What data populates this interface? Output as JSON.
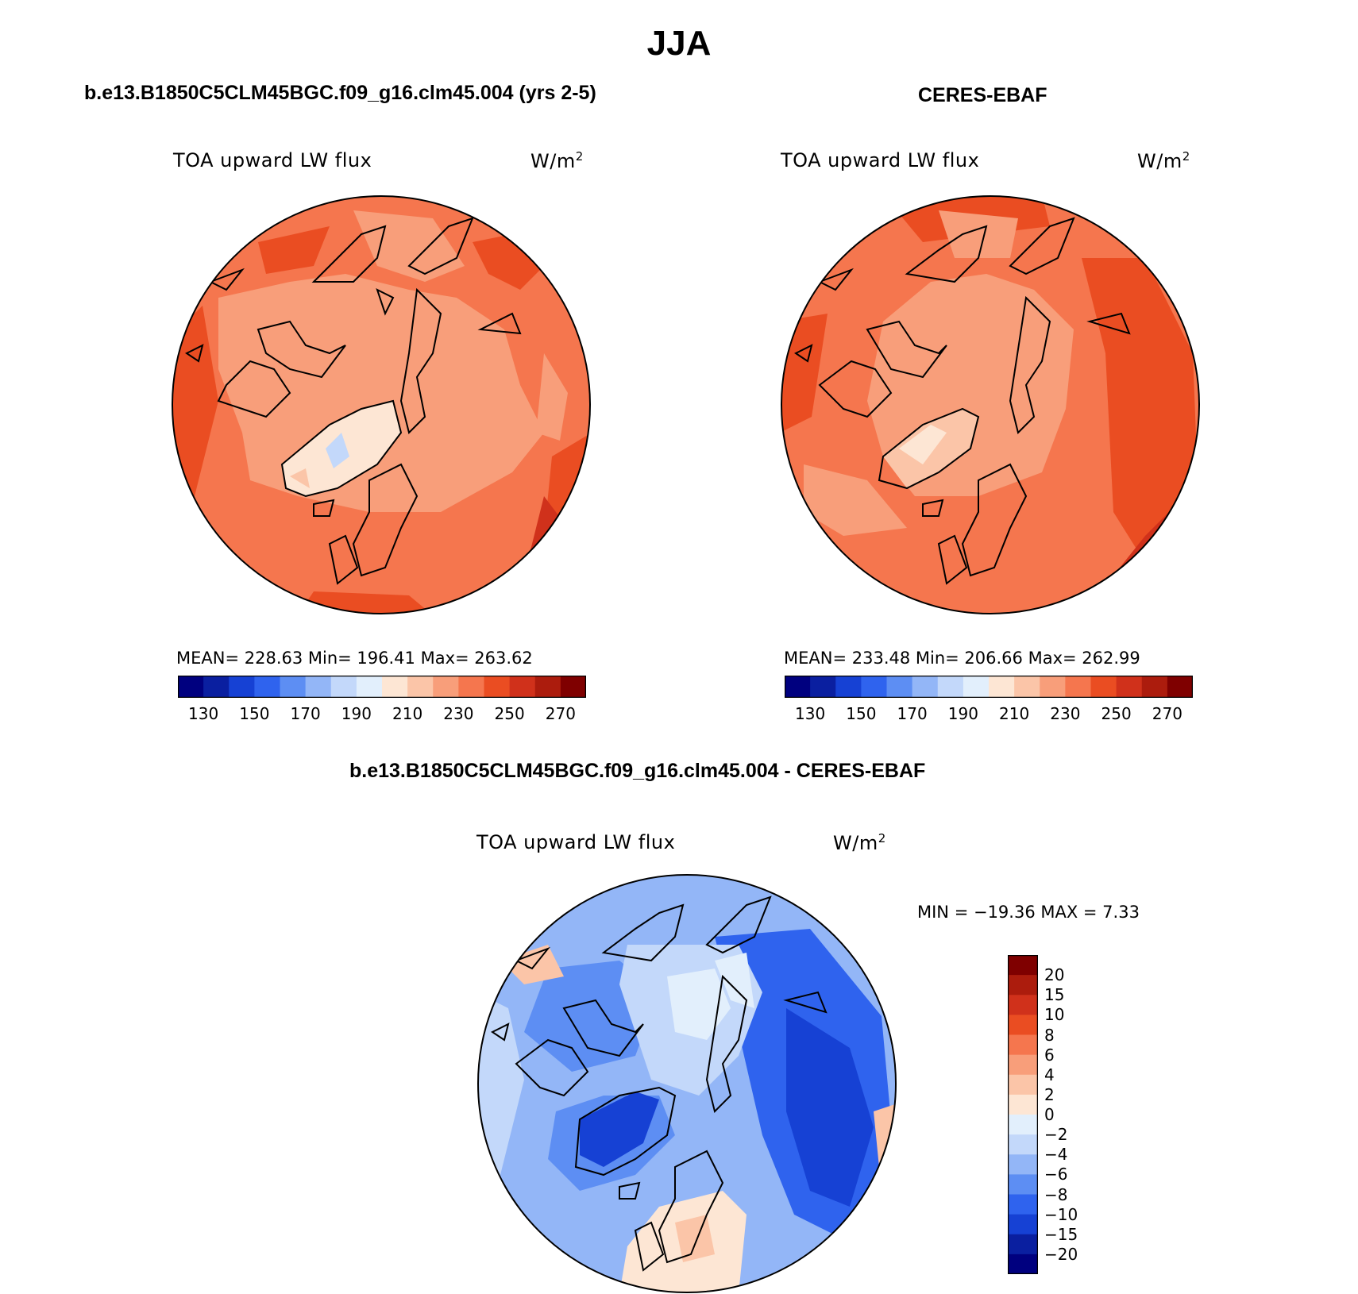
{
  "title": "JJA",
  "panels": {
    "model": {
      "header": "b.e13.B1850C5CLM45BGC.f09_g16.clm45.004 (yrs 2-5)",
      "variable": "TOA upward LW flux",
      "units_base": "W/m",
      "units_exp": "2",
      "stats": "MEAN= 228.63   Min= 196.41   Max= 263.62"
    },
    "obs": {
      "header": "CERES-EBAF",
      "variable": "TOA upward LW flux",
      "units_base": "W/m",
      "units_exp": "2",
      "stats": "MEAN= 233.48   Min= 206.66   Max= 262.99"
    },
    "diff": {
      "header": "b.e13.B1850C5CLM45BGC.f09_g16.clm45.004 - CERES-EBAF",
      "variable": "TOA upward LW flux",
      "units_base": "W/m",
      "units_exp": "2",
      "stats": "MIN = −19.36 MAX =    7.33"
    }
  },
  "colorbars": {
    "absolute": {
      "colors": [
        "#00007f",
        "#0a1fa0",
        "#1641d4",
        "#2f63ee",
        "#5d8ef3",
        "#93b6f7",
        "#c3d8fa",
        "#e2effc",
        "#fde6d4",
        "#fbc5a8",
        "#f89e7a",
        "#f5764e",
        "#ea4d22",
        "#d0311b",
        "#ac1c0d",
        "#7f0000"
      ],
      "ticks": [
        "130",
        "150",
        "170",
        "190",
        "210",
        "230",
        "250",
        "270"
      ]
    },
    "difference": {
      "colors": [
        "#7f0000",
        "#ac1c0d",
        "#d0311b",
        "#ea4d22",
        "#f5764e",
        "#f89e7a",
        "#fbc5a8",
        "#fde6d4",
        "#e2effc",
        "#c3d8fa",
        "#93b6f7",
        "#5d8ef3",
        "#2f63ee",
        "#1641d4",
        "#0a1fa0",
        "#00007f"
      ],
      "ticks": [
        "20",
        "15",
        "10",
        "8",
        "6",
        "4",
        "2",
        "0",
        "−2",
        "−4",
        "−6",
        "−8",
        "−10",
        "−15",
        "−20"
      ]
    }
  }
}
